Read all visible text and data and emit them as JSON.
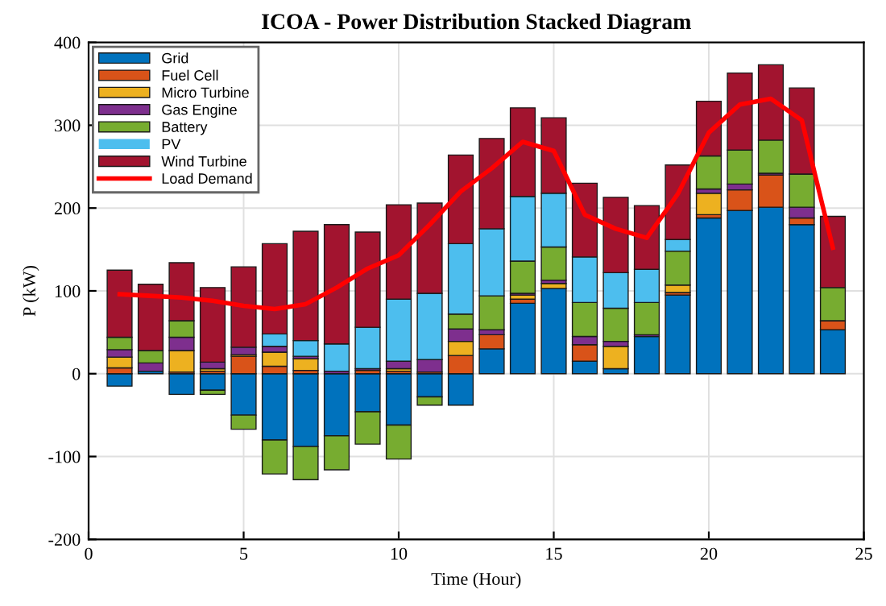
{
  "chart_data": {
    "type": "bar",
    "stacked": true,
    "title": "ICOA - Power Distribution Stacked Diagram",
    "xlabel": "Time (Hour)",
    "ylabel": "P (kW)",
    "x": [
      1,
      2,
      3,
      4,
      5,
      6,
      7,
      8,
      9,
      10,
      11,
      12,
      13,
      14,
      15,
      16,
      17,
      18,
      19,
      20,
      21,
      22,
      23,
      24
    ],
    "series": [
      {
        "name": "Grid",
        "color": "#0072bd",
        "values": [
          -15,
          3,
          -25,
          -20,
          -50,
          -80,
          -88,
          -75,
          -46,
          -62,
          -28,
          -38,
          30,
          85,
          103,
          15,
          6,
          45,
          95,
          188,
          197,
          201,
          180,
          53
        ]
      },
      {
        "name": "Fuel Cell",
        "color": "#d95319",
        "values": [
          7,
          0,
          2,
          3,
          21,
          9,
          4,
          0,
          4,
          3,
          2,
          22,
          17,
          5,
          0,
          20,
          0,
          0,
          3,
          4,
          25,
          39,
          8,
          11
        ]
      },
      {
        "name": "Micro Turbine",
        "color": "#edb120",
        "values": [
          13,
          0,
          26,
          3,
          2,
          17,
          14,
          0,
          0,
          3,
          0,
          17,
          0,
          5,
          6,
          null,
          27,
          0,
          9,
          26,
          0,
          0,
          0,
          0
        ]
      },
      {
        "name": "Gas Engine",
        "color": "#7e2f8e",
        "values": [
          9,
          10,
          16,
          8,
          9,
          7,
          3,
          3,
          2,
          9,
          15,
          15,
          6,
          2,
          4,
          10,
          6,
          2,
          0,
          5,
          7,
          2,
          13,
          0
        ]
      },
      {
        "name": "Battery",
        "color": "#77ac30",
        "values": [
          15,
          15,
          20,
          -5,
          -17,
          -41,
          -40,
          -41,
          -39,
          -41,
          -10,
          18,
          41,
          39,
          40,
          41,
          40,
          39,
          41,
          40,
          41,
          40,
          40,
          40
        ]
      },
      {
        "name": "PV",
        "color": "#4dbeee",
        "values": [
          0,
          0,
          0,
          0,
          0,
          15,
          19,
          33,
          50,
          75,
          80,
          85,
          81,
          78,
          65,
          55,
          43,
          40,
          14,
          0,
          0,
          0,
          0,
          0
        ]
      },
      {
        "name": "Wind Turbine",
        "color": "#a2142f",
        "values": [
          81,
          80,
          70,
          90,
          97,
          109,
          132,
          144,
          115,
          114,
          109,
          107,
          109,
          107,
          91,
          89,
          91,
          77,
          90,
          66,
          93,
          91,
          104,
          86
        ]
      },
      {
        "name": "Load Demand",
        "type": "line",
        "color": "#ff0000",
        "values": [
          96,
          94,
          92,
          88,
          82,
          78,
          84,
          104,
          127,
          143,
          180,
          220,
          248,
          280,
          269,
          192,
          175,
          164,
          217,
          291,
          325,
          332,
          306,
          152
        ]
      }
    ],
    "xlim": [
      0,
      25
    ],
    "xticks": [
      0,
      5,
      10,
      15,
      20,
      25
    ],
    "ylim": [
      -200,
      400
    ],
    "yticks": [
      -200,
      -100,
      0,
      100,
      200,
      300,
      400
    ],
    "grid": true,
    "legend": "top left"
  }
}
